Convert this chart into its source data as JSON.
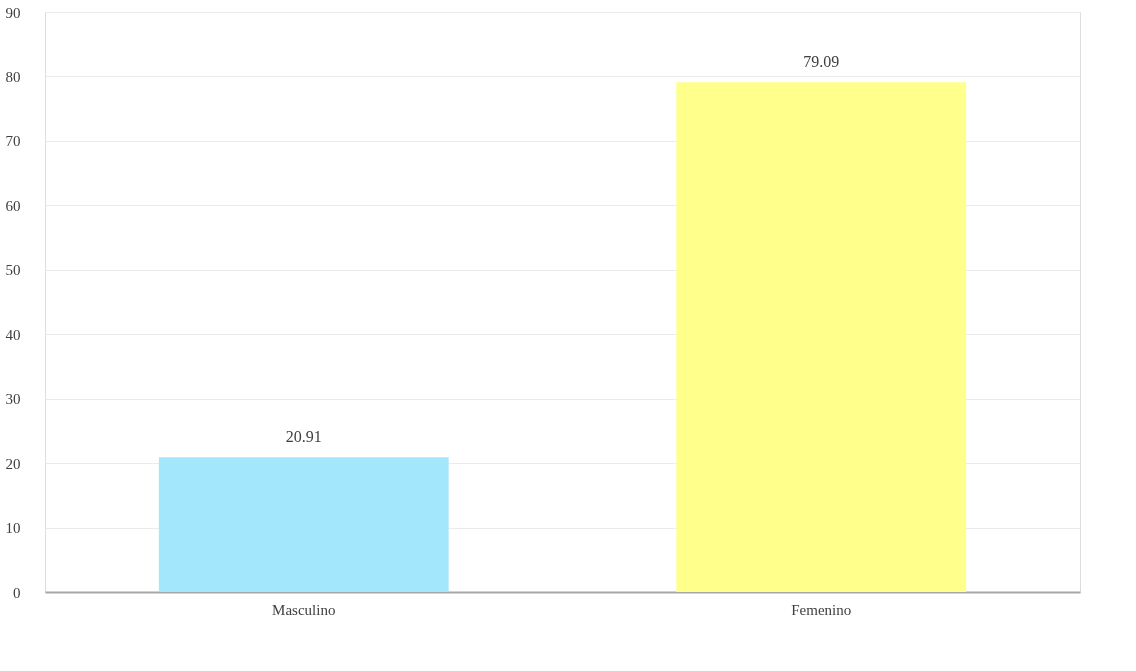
{
  "chart_data": {
    "type": "bar",
    "categories": [
      "Masculino",
      "Femenino"
    ],
    "values": [
      20.91,
      79.09
    ],
    "colors": [
      "#a3e7fc",
      "#ffff8c"
    ],
    "ylim": [
      0,
      90
    ],
    "yticks": [
      0,
      10,
      20,
      30,
      40,
      50,
      60,
      70,
      80,
      90
    ],
    "grid": "y",
    "data_labels": true
  }
}
